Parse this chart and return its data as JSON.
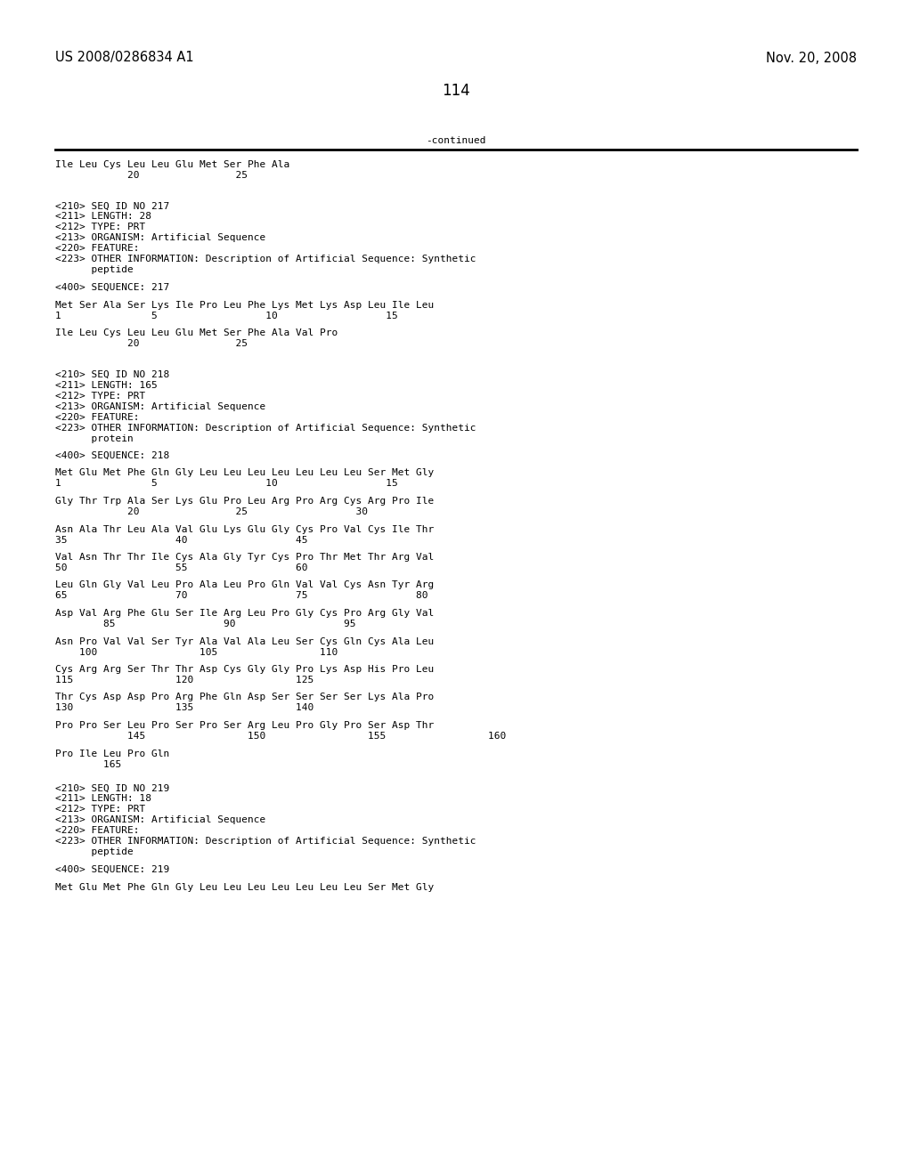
{
  "header_left": "US 2008/0286834 A1",
  "header_right": "Nov. 20, 2008",
  "page_number": "114",
  "continued_label": "-continued",
  "background_color": "#ffffff",
  "text_color": "#000000",
  "font_size": 8.0,
  "mono_font": "DejaVu Sans Mono",
  "header_font_size": 10.5,
  "page_num_font_size": 12,
  "content": [
    {
      "type": "line",
      "text": "Ile Leu Cys Leu Leu Glu Met Ser Phe Ala"
    },
    {
      "type": "line",
      "text": "            20                25"
    },
    {
      "type": "blank"
    },
    {
      "type": "blank"
    },
    {
      "type": "blank"
    },
    {
      "type": "line",
      "text": "<210> SEQ ID NO 217"
    },
    {
      "type": "line",
      "text": "<211> LENGTH: 28"
    },
    {
      "type": "line",
      "text": "<212> TYPE: PRT"
    },
    {
      "type": "line",
      "text": "<213> ORGANISM: Artificial Sequence"
    },
    {
      "type": "line",
      "text": "<220> FEATURE:"
    },
    {
      "type": "line",
      "text": "<223> OTHER INFORMATION: Description of Artificial Sequence: Synthetic"
    },
    {
      "type": "line",
      "text": "      peptide"
    },
    {
      "type": "blank"
    },
    {
      "type": "line",
      "text": "<400> SEQUENCE: 217"
    },
    {
      "type": "blank"
    },
    {
      "type": "line",
      "text": "Met Ser Ala Ser Lys Ile Pro Leu Phe Lys Met Lys Asp Leu Ile Leu"
    },
    {
      "type": "line",
      "text": "1               5                  10                  15"
    },
    {
      "type": "blank"
    },
    {
      "type": "line",
      "text": "Ile Leu Cys Leu Leu Glu Met Ser Phe Ala Val Pro"
    },
    {
      "type": "line",
      "text": "            20                25"
    },
    {
      "type": "blank"
    },
    {
      "type": "blank"
    },
    {
      "type": "blank"
    },
    {
      "type": "line",
      "text": "<210> SEQ ID NO 218"
    },
    {
      "type": "line",
      "text": "<211> LENGTH: 165"
    },
    {
      "type": "line",
      "text": "<212> TYPE: PRT"
    },
    {
      "type": "line",
      "text": "<213> ORGANISM: Artificial Sequence"
    },
    {
      "type": "line",
      "text": "<220> FEATURE:"
    },
    {
      "type": "line",
      "text": "<223> OTHER INFORMATION: Description of Artificial Sequence: Synthetic"
    },
    {
      "type": "line",
      "text": "      protein"
    },
    {
      "type": "blank"
    },
    {
      "type": "line",
      "text": "<400> SEQUENCE: 218"
    },
    {
      "type": "blank"
    },
    {
      "type": "line",
      "text": "Met Glu Met Phe Gln Gly Leu Leu Leu Leu Leu Leu Leu Ser Met Gly"
    },
    {
      "type": "line",
      "text": "1               5                  10                  15"
    },
    {
      "type": "blank"
    },
    {
      "type": "line",
      "text": "Gly Thr Trp Ala Ser Lys Glu Pro Leu Arg Pro Arg Cys Arg Pro Ile"
    },
    {
      "type": "line",
      "text": "            20                25                  30"
    },
    {
      "type": "blank"
    },
    {
      "type": "line",
      "text": "Asn Ala Thr Leu Ala Val Glu Lys Glu Gly Cys Pro Val Cys Ile Thr"
    },
    {
      "type": "line",
      "text": "35                  40                  45"
    },
    {
      "type": "blank"
    },
    {
      "type": "line",
      "text": "Val Asn Thr Thr Ile Cys Ala Gly Tyr Cys Pro Thr Met Thr Arg Val"
    },
    {
      "type": "line",
      "text": "50                  55                  60"
    },
    {
      "type": "blank"
    },
    {
      "type": "line",
      "text": "Leu Gln Gly Val Leu Pro Ala Leu Pro Gln Val Val Cys Asn Tyr Arg"
    },
    {
      "type": "line",
      "text": "65                  70                  75                  80"
    },
    {
      "type": "blank"
    },
    {
      "type": "line",
      "text": "Asp Val Arg Phe Glu Ser Ile Arg Leu Pro Gly Cys Pro Arg Gly Val"
    },
    {
      "type": "line",
      "text": "        85                  90                  95"
    },
    {
      "type": "blank"
    },
    {
      "type": "line",
      "text": "Asn Pro Val Val Ser Tyr Ala Val Ala Leu Ser Cys Gln Cys Ala Leu"
    },
    {
      "type": "line",
      "text": "    100                 105                 110"
    },
    {
      "type": "blank"
    },
    {
      "type": "line",
      "text": "Cys Arg Arg Ser Thr Thr Asp Cys Gly Gly Pro Lys Asp His Pro Leu"
    },
    {
      "type": "line",
      "text": "115                 120                 125"
    },
    {
      "type": "blank"
    },
    {
      "type": "line",
      "text": "Thr Cys Asp Asp Pro Arg Phe Gln Asp Ser Ser Ser Ser Lys Ala Pro"
    },
    {
      "type": "line",
      "text": "130                 135                 140"
    },
    {
      "type": "blank"
    },
    {
      "type": "line",
      "text": "Pro Pro Ser Leu Pro Ser Pro Ser Arg Leu Pro Gly Pro Ser Asp Thr"
    },
    {
      "type": "line",
      "text": "            145                 150                 155                 160"
    },
    {
      "type": "blank"
    },
    {
      "type": "line",
      "text": "Pro Ile Leu Pro Gln"
    },
    {
      "type": "line",
      "text": "        165"
    },
    {
      "type": "blank"
    },
    {
      "type": "blank"
    },
    {
      "type": "line",
      "text": "<210> SEQ ID NO 219"
    },
    {
      "type": "line",
      "text": "<211> LENGTH: 18"
    },
    {
      "type": "line",
      "text": "<212> TYPE: PRT"
    },
    {
      "type": "line",
      "text": "<213> ORGANISM: Artificial Sequence"
    },
    {
      "type": "line",
      "text": "<220> FEATURE:"
    },
    {
      "type": "line",
      "text": "<223> OTHER INFORMATION: Description of Artificial Sequence: Synthetic"
    },
    {
      "type": "line",
      "text": "      peptide"
    },
    {
      "type": "blank"
    },
    {
      "type": "line",
      "text": "<400> SEQUENCE: 219"
    },
    {
      "type": "blank"
    },
    {
      "type": "line",
      "text": "Met Glu Met Phe Gln Gly Leu Leu Leu Leu Leu Leu Leu Ser Met Gly"
    }
  ]
}
